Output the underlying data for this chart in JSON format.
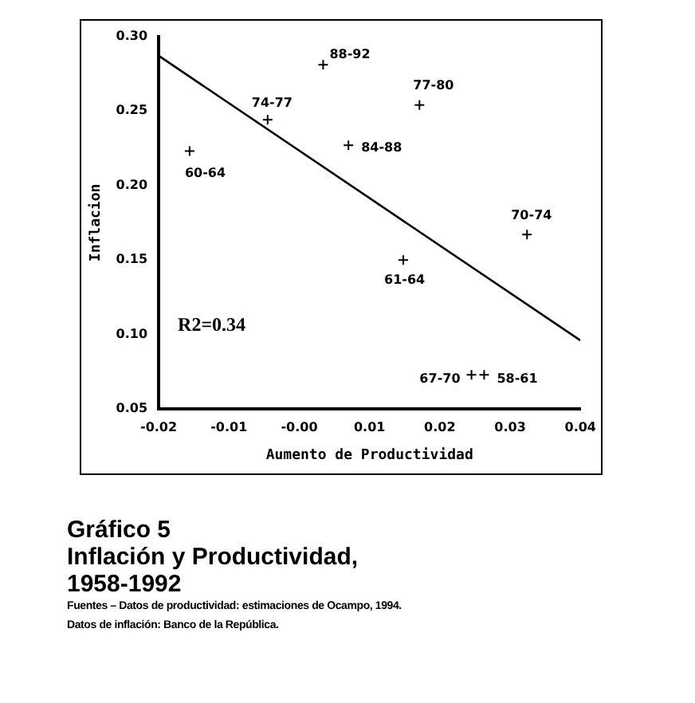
{
  "chart_data": {
    "type": "scatter",
    "title": "Gráfico 5",
    "subtitle": "Inflación y Productividad, 1958-1992",
    "xlabel": "Aumento de Productividad",
    "ylabel": "Inflacion",
    "xlim": [
      -0.02,
      0.04
    ],
    "xticks": [
      {
        "value": -0.02,
        "label": "-0.02"
      },
      {
        "value": -0.01,
        "label": "-0.01"
      },
      {
        "value": 0,
        "label": "-0.00"
      },
      0.01,
      0.02,
      0.03,
      0.04
    ],
    "ylim": [
      0.05,
      0.3
    ],
    "yticks": [
      0.05,
      {
        "value": 0.1,
        "label": "0.10"
      },
      0.15,
      {
        "value": 0.2,
        "label": "0.20"
      },
      0.25,
      {
        "value": 0.3,
        "label": "0.30"
      }
    ],
    "grid": false,
    "legend": false,
    "series": [
      {
        "marker": "cross",
        "color": "#000000",
        "x": [
          -0.0156,
          -0.0045,
          0.0034,
          0.007,
          0.0171,
          0.0324,
          0.0148,
          0.0245,
          0.0263
        ],
        "values": [
          0.223,
          0.244,
          0.281,
          0.227,
          0.254,
          0.167,
          0.15,
          0.073,
          0.073
        ]
      },
      {
        "type": "line",
        "marker": "none",
        "color": "#000000",
        "x": [
          -0.02,
          0.04
        ],
        "values": [
          0.287,
          0.096
        ]
      }
    ],
    "annotations": [
      {
        "text": "60-64",
        "x": -0.0156,
        "y": 0.223
      },
      {
        "text": "74-77",
        "x": -0.0045,
        "y": 0.244
      },
      {
        "text": "88-92",
        "x": 0.0034,
        "y": 0.281
      },
      {
        "text": "84-88",
        "x": 0.007,
        "y": 0.227
      },
      {
        "text": "77-80",
        "x": 0.0171,
        "y": 0.254
      },
      {
        "text": "70-74",
        "x": 0.0324,
        "y": 0.167
      },
      {
        "text": "61-64",
        "x": 0.0148,
        "y": 0.15
      },
      {
        "text": "67-70",
        "x": 0.0245,
        "y": 0.073
      },
      {
        "text": "58-61",
        "x": 0.0263,
        "y": 0.073
      },
      "R2=0.34",
      "Fuentes – Datos de productividad: estimaciones de Ocampo, 1994.",
      "Datos de inflación: Banco de la República."
    ]
  }
}
